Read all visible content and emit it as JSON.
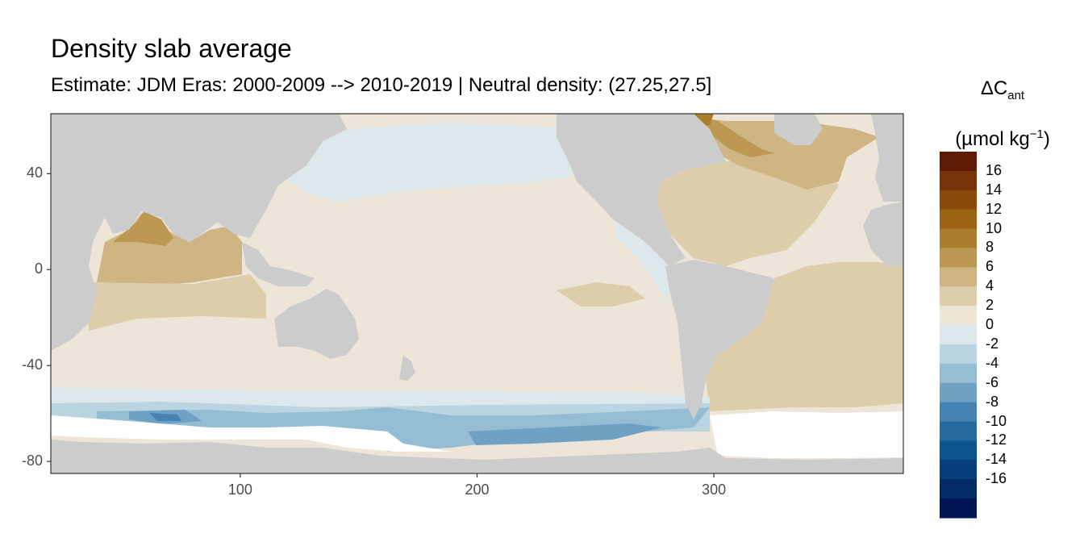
{
  "title": "Density slab average",
  "subtitle": "Estimate: JDM Eras: 2000-2009 --> 2010-2019 | Neutral density: (27.25,27.5]",
  "legend": {
    "title_symbol": "ΔC",
    "title_sub": "ant",
    "unit_open": "(µmol kg",
    "unit_sup": "−1",
    "unit_close": ")",
    "labels": [
      "16",
      "14",
      "12",
      "10",
      "8",
      "6",
      "4",
      "2",
      "0",
      "-2",
      "-4",
      "-6",
      "-8",
      "-10",
      "-12",
      "-14",
      "-16"
    ],
    "colors": [
      "#5e1a05",
      "#773208",
      "#8c4a0a",
      "#9a6314",
      "#ab7e2d",
      "#bd9852",
      "#cfb583",
      "#ddcdaa",
      "#ede5d6",
      "#dde8ec",
      "#bad5e1",
      "#94bdd3",
      "#6ea1c4",
      "#4783b2",
      "#276aa0",
      "#0e538d",
      "#063d7a",
      "#022a67",
      "#001555"
    ]
  },
  "map": {
    "x_ticks": [
      100,
      200,
      300
    ],
    "y_ticks": [
      40,
      0,
      -40,
      -80
    ],
    "xlim": [
      20,
      380
    ],
    "ylim": [
      -85,
      65
    ],
    "land_color": "#cccccc",
    "ice_color": "#ffffff"
  }
}
